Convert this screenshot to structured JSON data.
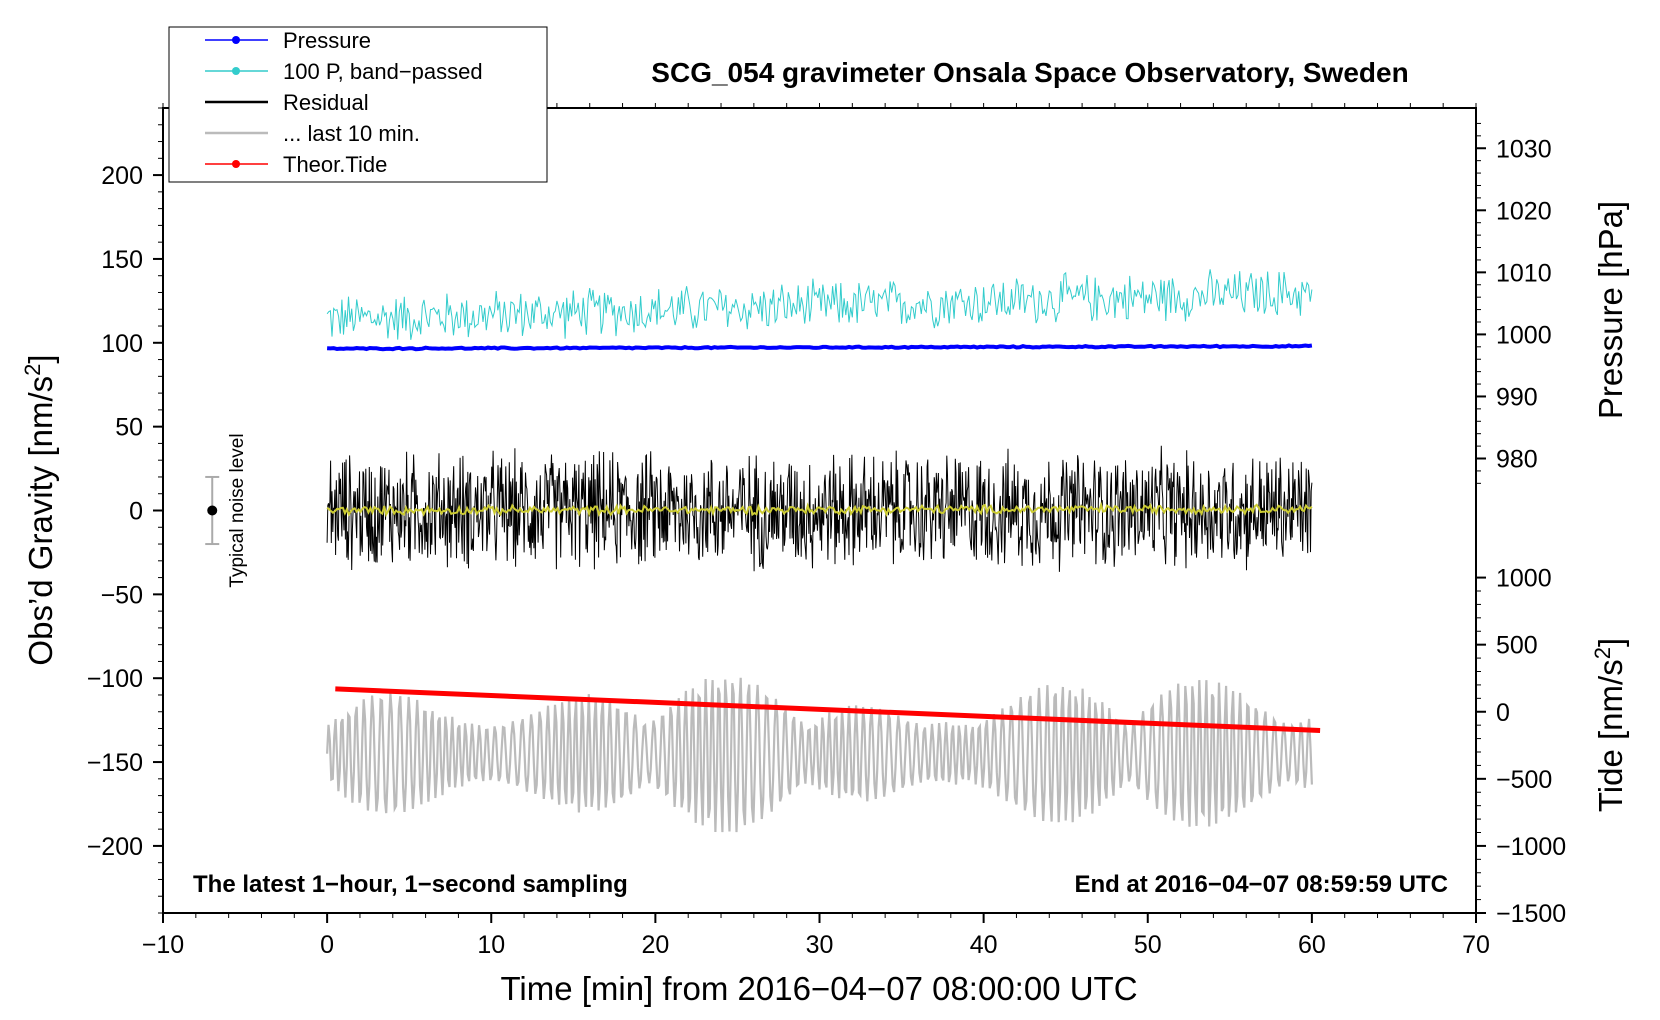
{
  "chart_data": {
    "type": "line",
    "title": "SCG_054 gravimeter Onsala Space Observatory, Sweden",
    "xlabel": "Time [min] from 2016−04−07 08:00:00 UTC",
    "ylabel_left_prefix": "Obs’d Gravity [nm/s",
    "ylabel_left_sup": "2",
    "ylabel_left_suffix": "]",
    "ylabel_pressure": "Pressure [hPa]",
    "ylabel_tide_prefix": "Tide [nm/s",
    "ylabel_tide_sup": "2",
    "ylabel_tide_suffix": "]",
    "xlim": [
      -10,
      70
    ],
    "ylim_left": [
      -240,
      240
    ],
    "x_ticks": [
      "−10",
      "0",
      "10",
      "20",
      "30",
      "40",
      "50",
      "60",
      "70"
    ],
    "x_tick_values": [
      -10,
      0,
      10,
      20,
      30,
      40,
      50,
      60,
      70
    ],
    "left_ticks": [
      "200",
      "150",
      "100",
      "50",
      "0",
      "−50",
      "−100",
      "−150",
      "−200"
    ],
    "left_tick_values": [
      200,
      150,
      100,
      50,
      0,
      -50,
      -100,
      -150,
      -200
    ],
    "pressure_ticks": [
      "1030",
      "1020",
      "1010",
      "1000",
      "990",
      "980"
    ],
    "pressure_tick_values": [
      1030,
      1020,
      1010,
      1000,
      990,
      980
    ],
    "pressure_map": {
      "hpa_ref": 1000,
      "left_ref": 105,
      "left_per_hpa": 3.7
    },
    "tide_ticks": [
      "1000",
      "500",
      "0",
      "−500",
      "−1000",
      "−1500"
    ],
    "tide_tick_values": [
      1000,
      500,
      0,
      -500,
      -1000,
      -1500
    ],
    "tide_map": {
      "tide_ref": 0,
      "left_ref": -120,
      "left_per_unit": 0.08
    },
    "legend": [
      {
        "label": "Pressure",
        "color": "#0000ff",
        "marker": true
      },
      {
        "label": "100 P, band−passed",
        "color": "#33cccc",
        "marker": true
      },
      {
        "label": "Residual",
        "color": "#000000",
        "marker": false
      },
      {
        "label": "... last 10 min.",
        "color": "#bbbbbb",
        "marker": false
      },
      {
        "label": "Theor.Tide",
        "color": "#ff0000",
        "marker": true
      }
    ],
    "noise_label": "Typical noise level",
    "noise_bar": {
      "x": -7,
      "center": 0,
      "half_range": 20
    },
    "bottom_left_note": "The latest 1−hour, 1−second sampling",
    "bottom_right_note": "End at 2016−04−07 08:59:59 UTC",
    "series": [
      {
        "name": "Pressure",
        "color": "#0000ff",
        "x_range": [
          0,
          60
        ],
        "left_start": 96.5,
        "left_end": 98.0,
        "amplitude": 0.5
      },
      {
        "name": "100 P, band−passed",
        "color": "#33cccc",
        "x_range": [
          0,
          60
        ],
        "left_start": 114,
        "left_end": 130,
        "amplitude": 17
      },
      {
        "name": "Residual",
        "color": "#000000",
        "x_range": [
          0,
          60
        ],
        "left_start": 0,
        "left_end": 0,
        "amplitude": 40
      },
      {
        "name": "Residual smoothed",
        "color": "#cccc33",
        "x_range": [
          0,
          60
        ],
        "left_start": 0,
        "left_end": 1,
        "amplitude": 3
      },
      {
        "name": "... last 10 min.",
        "color": "#bbbbbb",
        "x_range": [
          0,
          60
        ],
        "left_start": -145,
        "left_end": -145,
        "amplitude": 48
      },
      {
        "name": "Theor.Tide",
        "color": "#ff0000",
        "x_range": [
          0.5,
          60.5
        ],
        "tide_start": 170,
        "tide_end": -140
      }
    ]
  }
}
